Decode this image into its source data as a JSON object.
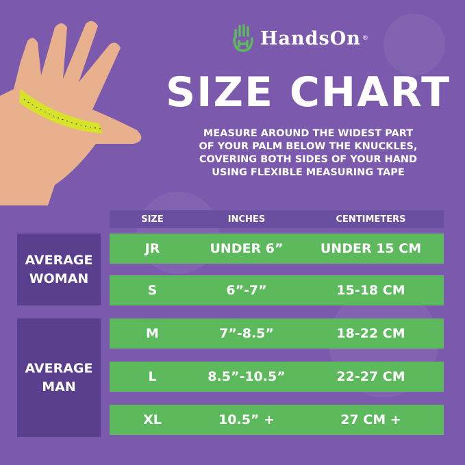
{
  "brand": {
    "name": "HandsOn",
    "registered": "®"
  },
  "title": "SIZE CHART",
  "instructions": [
    "MEASURE AROUND THE WIDEST PART",
    "OF YOUR PALM BELOW THE KNUCKLES,",
    "COVERING BOTH SIDES OF YOUR HAND",
    "USING FLEXIBLE MEASURING TAPE"
  ],
  "table": {
    "headers": [
      "SIZE",
      "INCHES",
      "CENTIMETERS"
    ],
    "rows": [
      {
        "size": "JR",
        "inches": "UNDER 6”",
        "cm": "UNDER 15 CM"
      },
      {
        "size": "S",
        "inches": "6”-7”",
        "cm": "15-18 CM"
      },
      {
        "size": "M",
        "inches": "7”-8.5”",
        "cm": "18-22 CM"
      },
      {
        "size": "L",
        "inches": "8.5”-10.5”",
        "cm": "22-27 CM"
      },
      {
        "size": "XL",
        "inches": "10.5” +",
        "cm": "27 CM +"
      }
    ],
    "groups": [
      {
        "label": "AVERAGE WOMAN"
      },
      {
        "label": "AVERAGE MAN"
      }
    ]
  },
  "colors": {
    "background": "#7b5aae",
    "row": "#5dba5c",
    "group": "#5a3f8f",
    "header": "#6a4ea0",
    "logo": "#5dba5c"
  }
}
